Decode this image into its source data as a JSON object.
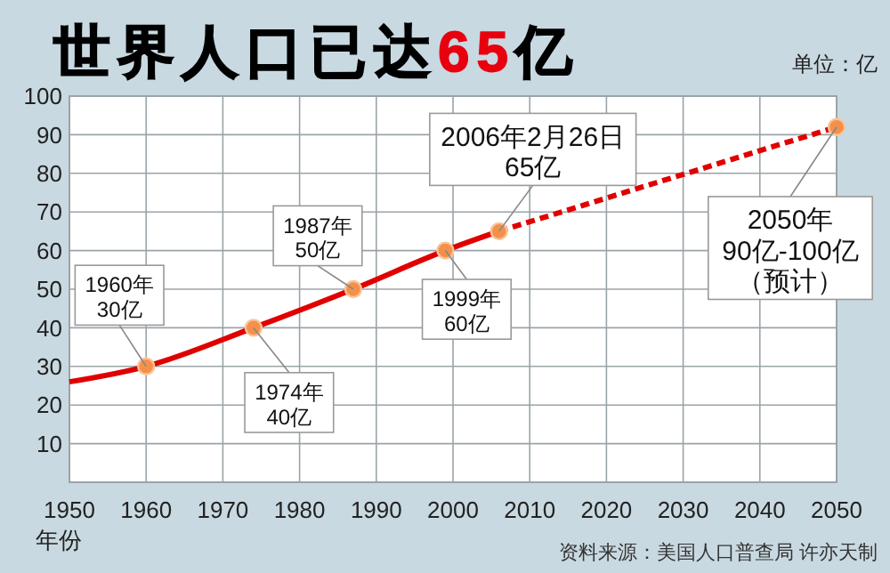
{
  "chart_data": {
    "type": "line",
    "title": "世界人口已达65亿",
    "ylabel": "单位：亿",
    "xlabel": "年份",
    "xlim": [
      1950,
      2050
    ],
    "xticks": [
      1950,
      1960,
      1970,
      1980,
      1990,
      2000,
      2010,
      2020,
      2030,
      2040,
      2050
    ],
    "ylim": [
      0,
      100
    ],
    "yticks": [
      {
        "value": 0,
        "label": null
      },
      10,
      20,
      30,
      40,
      50,
      60,
      70,
      80,
      90,
      100
    ],
    "grid": true,
    "series": [
      {
        "color": "#e00000",
        "x": [
          1950,
          1960,
          1974,
          1987,
          1999,
          2006
        ],
        "values": [
          26,
          30,
          40,
          50,
          60,
          65
        ],
        "line_style": "solid",
        "marker": "none"
      },
      {
        "color": "#e00000",
        "x": [
          2006,
          2050
        ],
        "values": [
          65,
          92
        ],
        "line_style": "dashed",
        "marker": "none"
      },
      {
        "type": "scatter",
        "color": "#f5904a",
        "x": [
          1960,
          1974,
          1987,
          1999,
          2006,
          2050
        ],
        "values": [
          30,
          40,
          50,
          60,
          65,
          92
        ],
        "marker": "circle"
      }
    ],
    "annotations": [
      {
        "text": "1960年\n30亿",
        "x": 1960,
        "y": 30
      },
      {
        "text": "1974年\n40亿",
        "x": 1974,
        "y": 40
      },
      {
        "text": "1987年\n50亿",
        "x": 1987,
        "y": 50
      },
      {
        "text": "1999年\n60亿",
        "x": 1999,
        "y": 60
      },
      {
        "text": "2006年2月26日\n65亿",
        "x": 2006,
        "y": 65
      },
      {
        "text": "2050年\n90亿-100亿（预计）",
        "x": 2050,
        "y": 92
      },
      "资料来源：美国人口普查局 许亦天制"
    ]
  }
}
